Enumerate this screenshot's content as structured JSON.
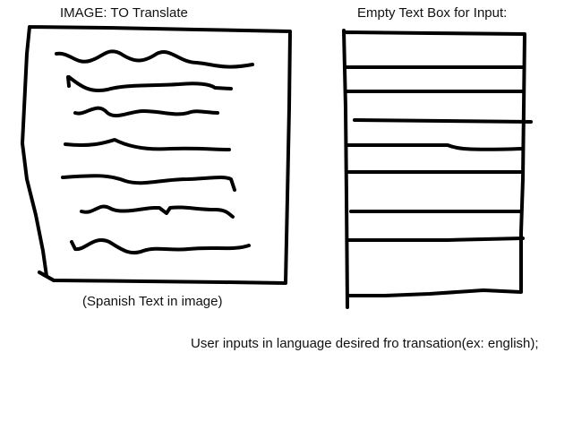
{
  "image_panel": {
    "title": "IMAGE: TO Translate",
    "caption": "(Spanish Text in image)",
    "content": "handwritten-text-scribbles"
  },
  "input_panel": {
    "title": "Empty Text Box for Input:",
    "state": "empty"
  },
  "instruction": "User inputs in language desired fro transation(ex: english);",
  "colors": {
    "background": "#ffffff",
    "ink": "#000000"
  }
}
